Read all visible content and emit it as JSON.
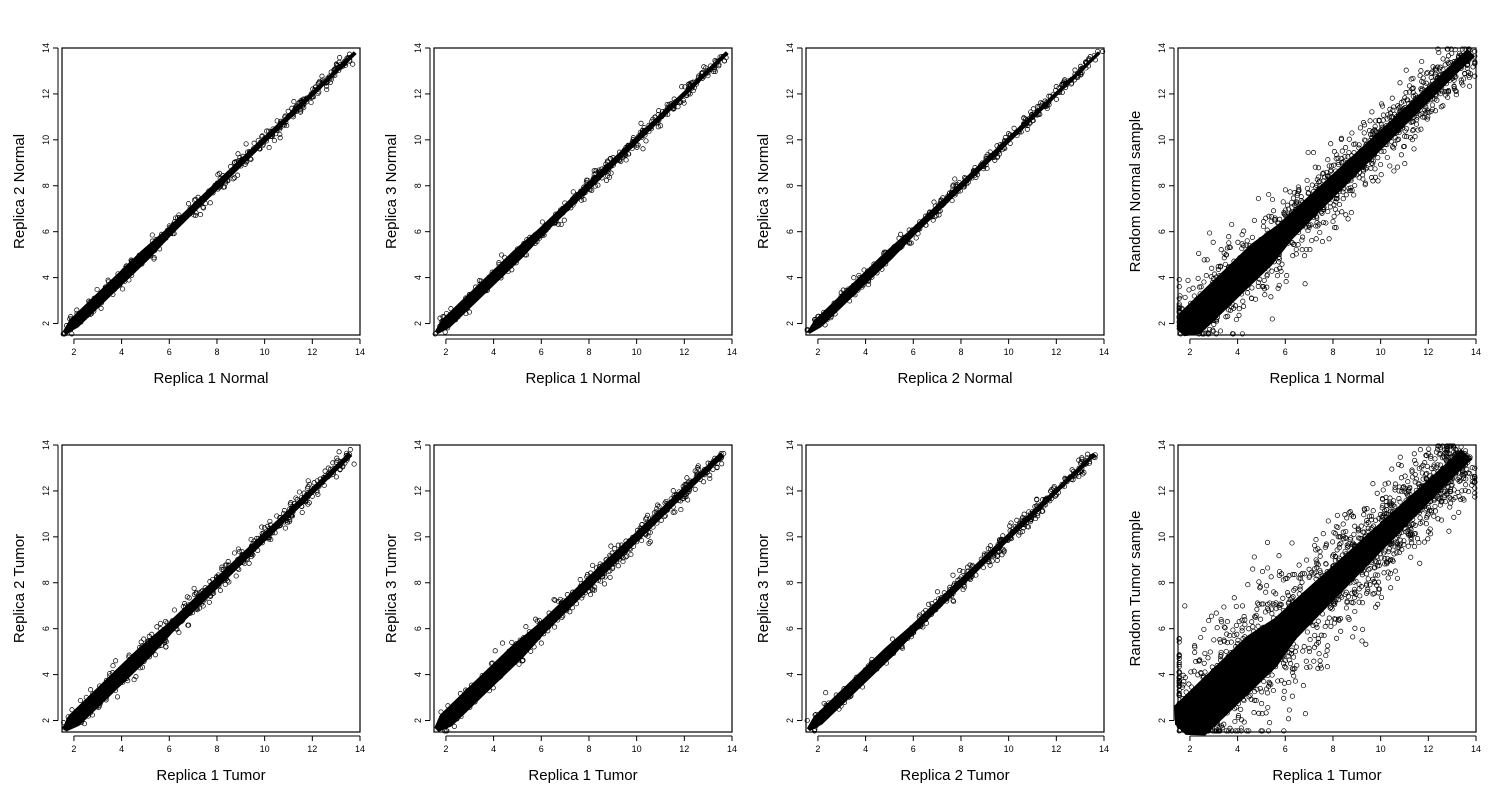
{
  "figure": {
    "chart_data": [
      {
        "type": "scatter",
        "xlabel": "Replica 1 Normal",
        "ylabel": "Replica 2 Normal",
        "xlim": [
          1.5,
          14
        ],
        "ylim": [
          1.5,
          14
        ],
        "x_ticks": [
          2,
          4,
          6,
          8,
          10,
          12,
          14
        ],
        "y_ticks": [
          2,
          4,
          6,
          8,
          10,
          12,
          14
        ],
        "grid": false,
        "marker": "open-circle",
        "series": [
          {
            "x": [
              1.6,
              2,
              3,
              4,
              5,
              6,
              7,
              8,
              9,
              10,
              11,
              12,
              13,
              13.8
            ],
            "y": [
              1.6,
              2,
              3,
              4,
              5,
              6,
              7,
              8,
              9,
              10,
              11,
              12,
              13,
              13.8
            ]
          }
        ],
        "spread": 0.35,
        "outlier_level": 0.04
      },
      {
        "type": "scatter",
        "xlabel": "Replica 1 Normal",
        "ylabel": "Replica 3 Normal",
        "xlim": [
          1.5,
          14
        ],
        "ylim": [
          1.5,
          14
        ],
        "x_ticks": [
          2,
          4,
          6,
          8,
          10,
          12,
          14
        ],
        "y_ticks": [
          2,
          4,
          6,
          8,
          10,
          12,
          14
        ],
        "grid": false,
        "marker": "open-circle",
        "series": [
          {
            "x": [
              1.6,
              2,
              3,
              4,
              5,
              6,
              7,
              8,
              9,
              10,
              11,
              12,
              13,
              13.8
            ],
            "y": [
              1.6,
              2,
              3,
              4,
              5,
              6,
              7,
              8,
              9,
              10,
              11,
              12,
              13,
              13.8
            ]
          }
        ],
        "spread": 0.35,
        "outlier_level": 0.04
      },
      {
        "type": "scatter",
        "xlabel": "Replica 2 Normal",
        "ylabel": "Replica 3 Normal",
        "xlim": [
          1.5,
          14
        ],
        "ylim": [
          1.5,
          14
        ],
        "x_ticks": [
          2,
          4,
          6,
          8,
          10,
          12,
          14
        ],
        "y_ticks": [
          2,
          4,
          6,
          8,
          10,
          12,
          14
        ],
        "grid": false,
        "marker": "open-circle",
        "series": [
          {
            "x": [
              1.6,
              2,
              3,
              4,
              5,
              6,
              7,
              8,
              9,
              10,
              11,
              12,
              13,
              13.8
            ],
            "y": [
              1.6,
              2,
              3,
              4,
              5,
              6,
              7,
              8,
              9,
              10,
              11,
              12,
              13,
              13.8
            ]
          }
        ],
        "spread": 0.3,
        "outlier_level": 0.03
      },
      {
        "type": "scatter",
        "xlabel": "Replica 1 Normal",
        "ylabel": "Random Normal sample",
        "xlim": [
          1.5,
          14
        ],
        "ylim": [
          1.5,
          14
        ],
        "x_ticks": [
          2,
          4,
          6,
          8,
          10,
          12,
          14
        ],
        "y_ticks": [
          2,
          4,
          6,
          8,
          10,
          12,
          14
        ],
        "grid": false,
        "marker": "open-circle",
        "series": [
          {
            "x": [
              1.6,
              2,
              3,
              4,
              5,
              6,
              7,
              8,
              9,
              10,
              11,
              12,
              13,
              13.8
            ],
            "y": [
              1.6,
              2,
              3,
              4,
              5,
              6,
              7,
              8,
              9,
              10,
              11,
              12,
              13,
              13.8
            ]
          }
        ],
        "spread": 0.9,
        "outlier_level": 0.35
      },
      {
        "type": "scatter",
        "xlabel": "Replica 1 Tumor",
        "ylabel": "Replica 2 Tumor",
        "xlim": [
          1.5,
          14
        ],
        "ylim": [
          1.5,
          14
        ],
        "x_ticks": [
          2,
          4,
          6,
          8,
          10,
          12,
          14
        ],
        "y_ticks": [
          2,
          4,
          6,
          8,
          10,
          12,
          14
        ],
        "grid": false,
        "marker": "open-circle",
        "series": [
          {
            "x": [
              1.6,
              2,
              3,
              4,
              5,
              6,
              7,
              8,
              9,
              10,
              11,
              12,
              13,
              13.6
            ],
            "y": [
              1.6,
              2,
              3,
              4,
              5,
              6,
              7,
              8,
              9,
              10,
              11,
              12,
              13,
              13.6
            ]
          }
        ],
        "spread": 0.45,
        "outlier_level": 0.06
      },
      {
        "type": "scatter",
        "xlabel": "Replica 1 Tumor",
        "ylabel": "Replica 3 Tumor",
        "xlim": [
          1.5,
          14
        ],
        "ylim": [
          1.5,
          14
        ],
        "x_ticks": [
          2,
          4,
          6,
          8,
          10,
          12,
          14
        ],
        "y_ticks": [
          2,
          4,
          6,
          8,
          10,
          12,
          14
        ],
        "grid": false,
        "marker": "open-circle",
        "series": [
          {
            "x": [
              1.6,
              2,
              3,
              4,
              5,
              6,
              7,
              8,
              9,
              10,
              11,
              12,
              13,
              13.6
            ],
            "y": [
              1.6,
              2,
              3,
              4,
              5,
              6,
              7,
              8,
              9,
              10,
              11,
              12,
              13,
              13.6
            ]
          }
        ],
        "spread": 0.5,
        "outlier_level": 0.06
      },
      {
        "type": "scatter",
        "xlabel": "Replica 2 Tumor",
        "ylabel": "Replica 3 Tumor",
        "xlim": [
          1.5,
          14
        ],
        "ylim": [
          1.5,
          14
        ],
        "x_ticks": [
          2,
          4,
          6,
          8,
          10,
          12,
          14
        ],
        "y_ticks": [
          2,
          4,
          6,
          8,
          10,
          12,
          14
        ],
        "grid": false,
        "marker": "open-circle",
        "series": [
          {
            "x": [
              1.6,
              2,
              3,
              4,
              5,
              6,
              7,
              8,
              9,
              10,
              11,
              12,
              13,
              13.6
            ],
            "y": [
              1.6,
              2,
              3,
              4,
              5,
              6,
              7,
              8,
              9,
              10,
              11,
              12,
              13,
              13.6
            ]
          }
        ],
        "spread": 0.35,
        "outlier_level": 0.04
      },
      {
        "type": "scatter",
        "xlabel": "Replica 1 Tumor",
        "ylabel": "Random Tumor sample",
        "xlim": [
          1.5,
          14
        ],
        "ylim": [
          1.5,
          14
        ],
        "x_ticks": [
          2,
          4,
          6,
          8,
          10,
          12,
          14
        ],
        "y_ticks": [
          2,
          4,
          6,
          8,
          10,
          12,
          14
        ],
        "grid": false,
        "marker": "open-circle",
        "series": [
          {
            "x": [
              1.6,
              2,
              3,
              4,
              5,
              6,
              7,
              8,
              9,
              10,
              11,
              12,
              13,
              13.6
            ],
            "y": [
              1.6,
              2,
              3,
              4,
              5,
              6,
              7,
              8,
              9,
              10,
              11,
              12,
              13,
              13.6
            ]
          }
        ],
        "spread": 1.3,
        "outlier_level": 0.6
      }
    ]
  }
}
